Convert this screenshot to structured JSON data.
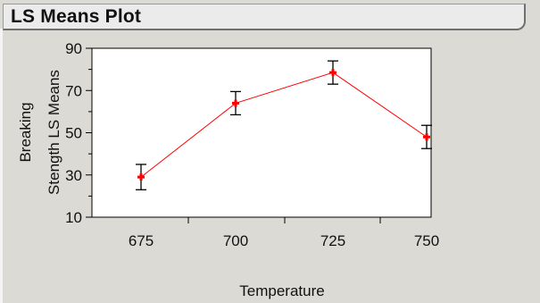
{
  "window": {
    "title": "LS Means Plot"
  },
  "chart_data": {
    "type": "line",
    "title": "LS Means Plot",
    "xlabel": "Temperature",
    "ylabel_lines": [
      "Breaking",
      "Stength LS Means"
    ],
    "categories": [
      "675",
      "700",
      "725",
      "750"
    ],
    "y_ticks": [
      "10",
      "30",
      "50",
      "70",
      "90"
    ],
    "ylim": [
      10,
      90
    ],
    "grid": false,
    "series": [
      {
        "values": [
          29,
          64,
          78.5,
          48
        ],
        "error_low": [
          23,
          58.5,
          73,
          42.5
        ],
        "error_high": [
          35,
          69.5,
          84,
          53.5
        ],
        "line_color": "#ff0000",
        "marker_color": "#ff0000"
      }
    ]
  }
}
